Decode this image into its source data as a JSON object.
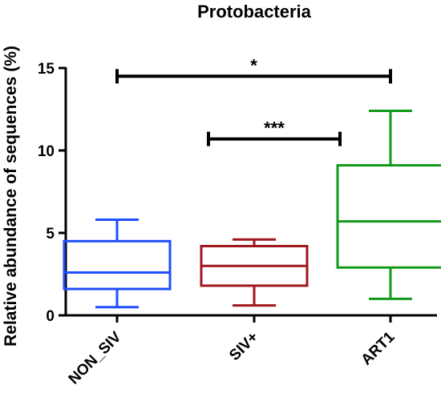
{
  "chart_data": {
    "type": "box",
    "title": "Protobacteria",
    "xlabel": "",
    "ylabel": "Relative abundance of sequences (%)",
    "ylim": [
      0,
      15
    ],
    "yticks": [
      0,
      5,
      10,
      15
    ],
    "categories": [
      "NON_SIV",
      "SIV+",
      "ART1"
    ],
    "boxes": [
      {
        "category": "NON_SIV",
        "min": 0.5,
        "q1": 1.6,
        "median": 2.6,
        "q3": 4.5,
        "max": 5.8,
        "color": "#1f4fff"
      },
      {
        "category": "SIV+",
        "min": 0.6,
        "q1": 1.8,
        "median": 3.0,
        "q3": 4.2,
        "max": 4.6,
        "color": "#a0161e"
      },
      {
        "category": "ART1",
        "min": 1.0,
        "q1": 2.9,
        "median": 5.7,
        "q3": 9.1,
        "max": 12.4,
        "color": "#119a1a"
      }
    ],
    "significance": [
      {
        "from": "NON_SIV",
        "to": "ART1",
        "y": 14.5,
        "label": "*"
      },
      {
        "from": "SIV+",
        "to": "ART1",
        "y": 10.7,
        "label": "***"
      }
    ],
    "grid": false,
    "legend": "none"
  }
}
